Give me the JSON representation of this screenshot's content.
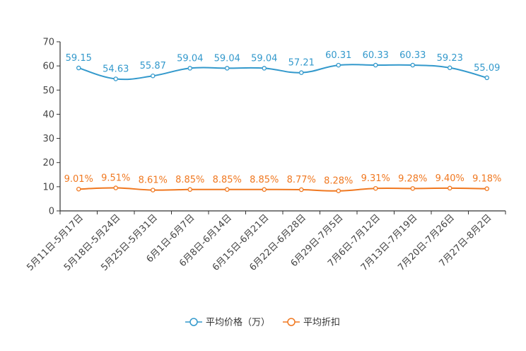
{
  "chart_data": {
    "type": "line",
    "categories": [
      "5月11日-5月17日",
      "5月18日-5月24日",
      "5月25日-5月31日",
      "6月1日-6月7日",
      "6月8日-6月14日",
      "6月15日-6月21日",
      "6月22日-6月28日",
      "6月29日-7月5日",
      "7月6日-7月12日",
      "7月13日-7月19日",
      "7月20日-7月26日",
      "7月27日-8月2日"
    ],
    "series": [
      {
        "name": "平均价格（万）",
        "color": "#3399cc",
        "values": [
          59.15,
          54.63,
          55.87,
          59.04,
          59.04,
          59.04,
          57.21,
          60.31,
          60.33,
          60.33,
          59.23,
          55.09
        ],
        "labels": [
          "59.15",
          "54.63",
          "55.87",
          "59.04",
          "59.04",
          "59.04",
          "57.21",
          "60.31",
          "60.33",
          "60.33",
          "59.23",
          "55.09"
        ]
      },
      {
        "name": "平均折扣",
        "color": "#f07820",
        "values": [
          9.01,
          9.51,
          8.61,
          8.85,
          8.85,
          8.85,
          8.77,
          8.28,
          9.31,
          9.28,
          9.4,
          9.18
        ],
        "labels": [
          "9.01%",
          "9.51%",
          "8.61%",
          "8.85%",
          "8.85%",
          "8.85%",
          "8.77%",
          "8.28%",
          "9.31%",
          "9.28%",
          "9.40%",
          "9.18%"
        ]
      }
    ],
    "y_ticks": [
      "0",
      "10",
      "20",
      "30",
      "40",
      "50",
      "60",
      "70"
    ],
    "ylim": [
      0,
      70
    ],
    "title": "",
    "xlabel": "",
    "ylabel": "",
    "legend_position": "bottom-center"
  }
}
